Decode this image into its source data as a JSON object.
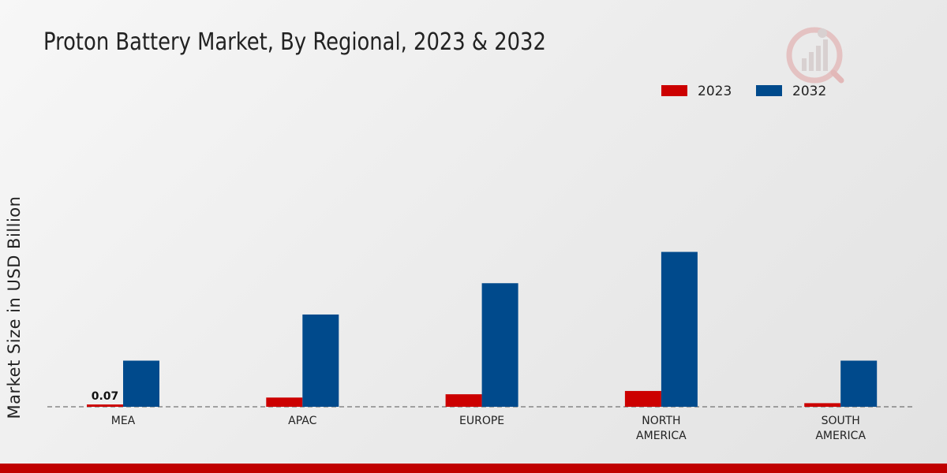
{
  "chart_data": {
    "type": "bar",
    "title": "Proton Battery Market, By Regional, 2023 & 2032",
    "ylabel": "Market Size in USD Billion",
    "xlabel": "",
    "categories": [
      [
        "MEA"
      ],
      [
        "APAC"
      ],
      [
        "EUROPE"
      ],
      [
        "NORTH",
        "AMERICA"
      ],
      [
        "SOUTH",
        "AMERICA"
      ]
    ],
    "series": [
      {
        "name": "2023",
        "color": "#cc0000",
        "values": [
          0.07,
          0.28,
          0.38,
          0.48,
          0.11
        ]
      },
      {
        "name": "2032",
        "color": "#004a8c",
        "values": [
          1.4,
          2.8,
          3.75,
          4.7,
          1.4
        ]
      }
    ],
    "data_labels": [
      {
        "series": 0,
        "index": 0,
        "text": "0.07"
      }
    ],
    "ylim": [
      0,
      10
    ],
    "grid": false,
    "legend_position": "top-right"
  },
  "colors": {
    "accent": "#c00000",
    "logo": "#d9a0a0"
  },
  "icons": {
    "logo": "market-research-logo-icon"
  }
}
